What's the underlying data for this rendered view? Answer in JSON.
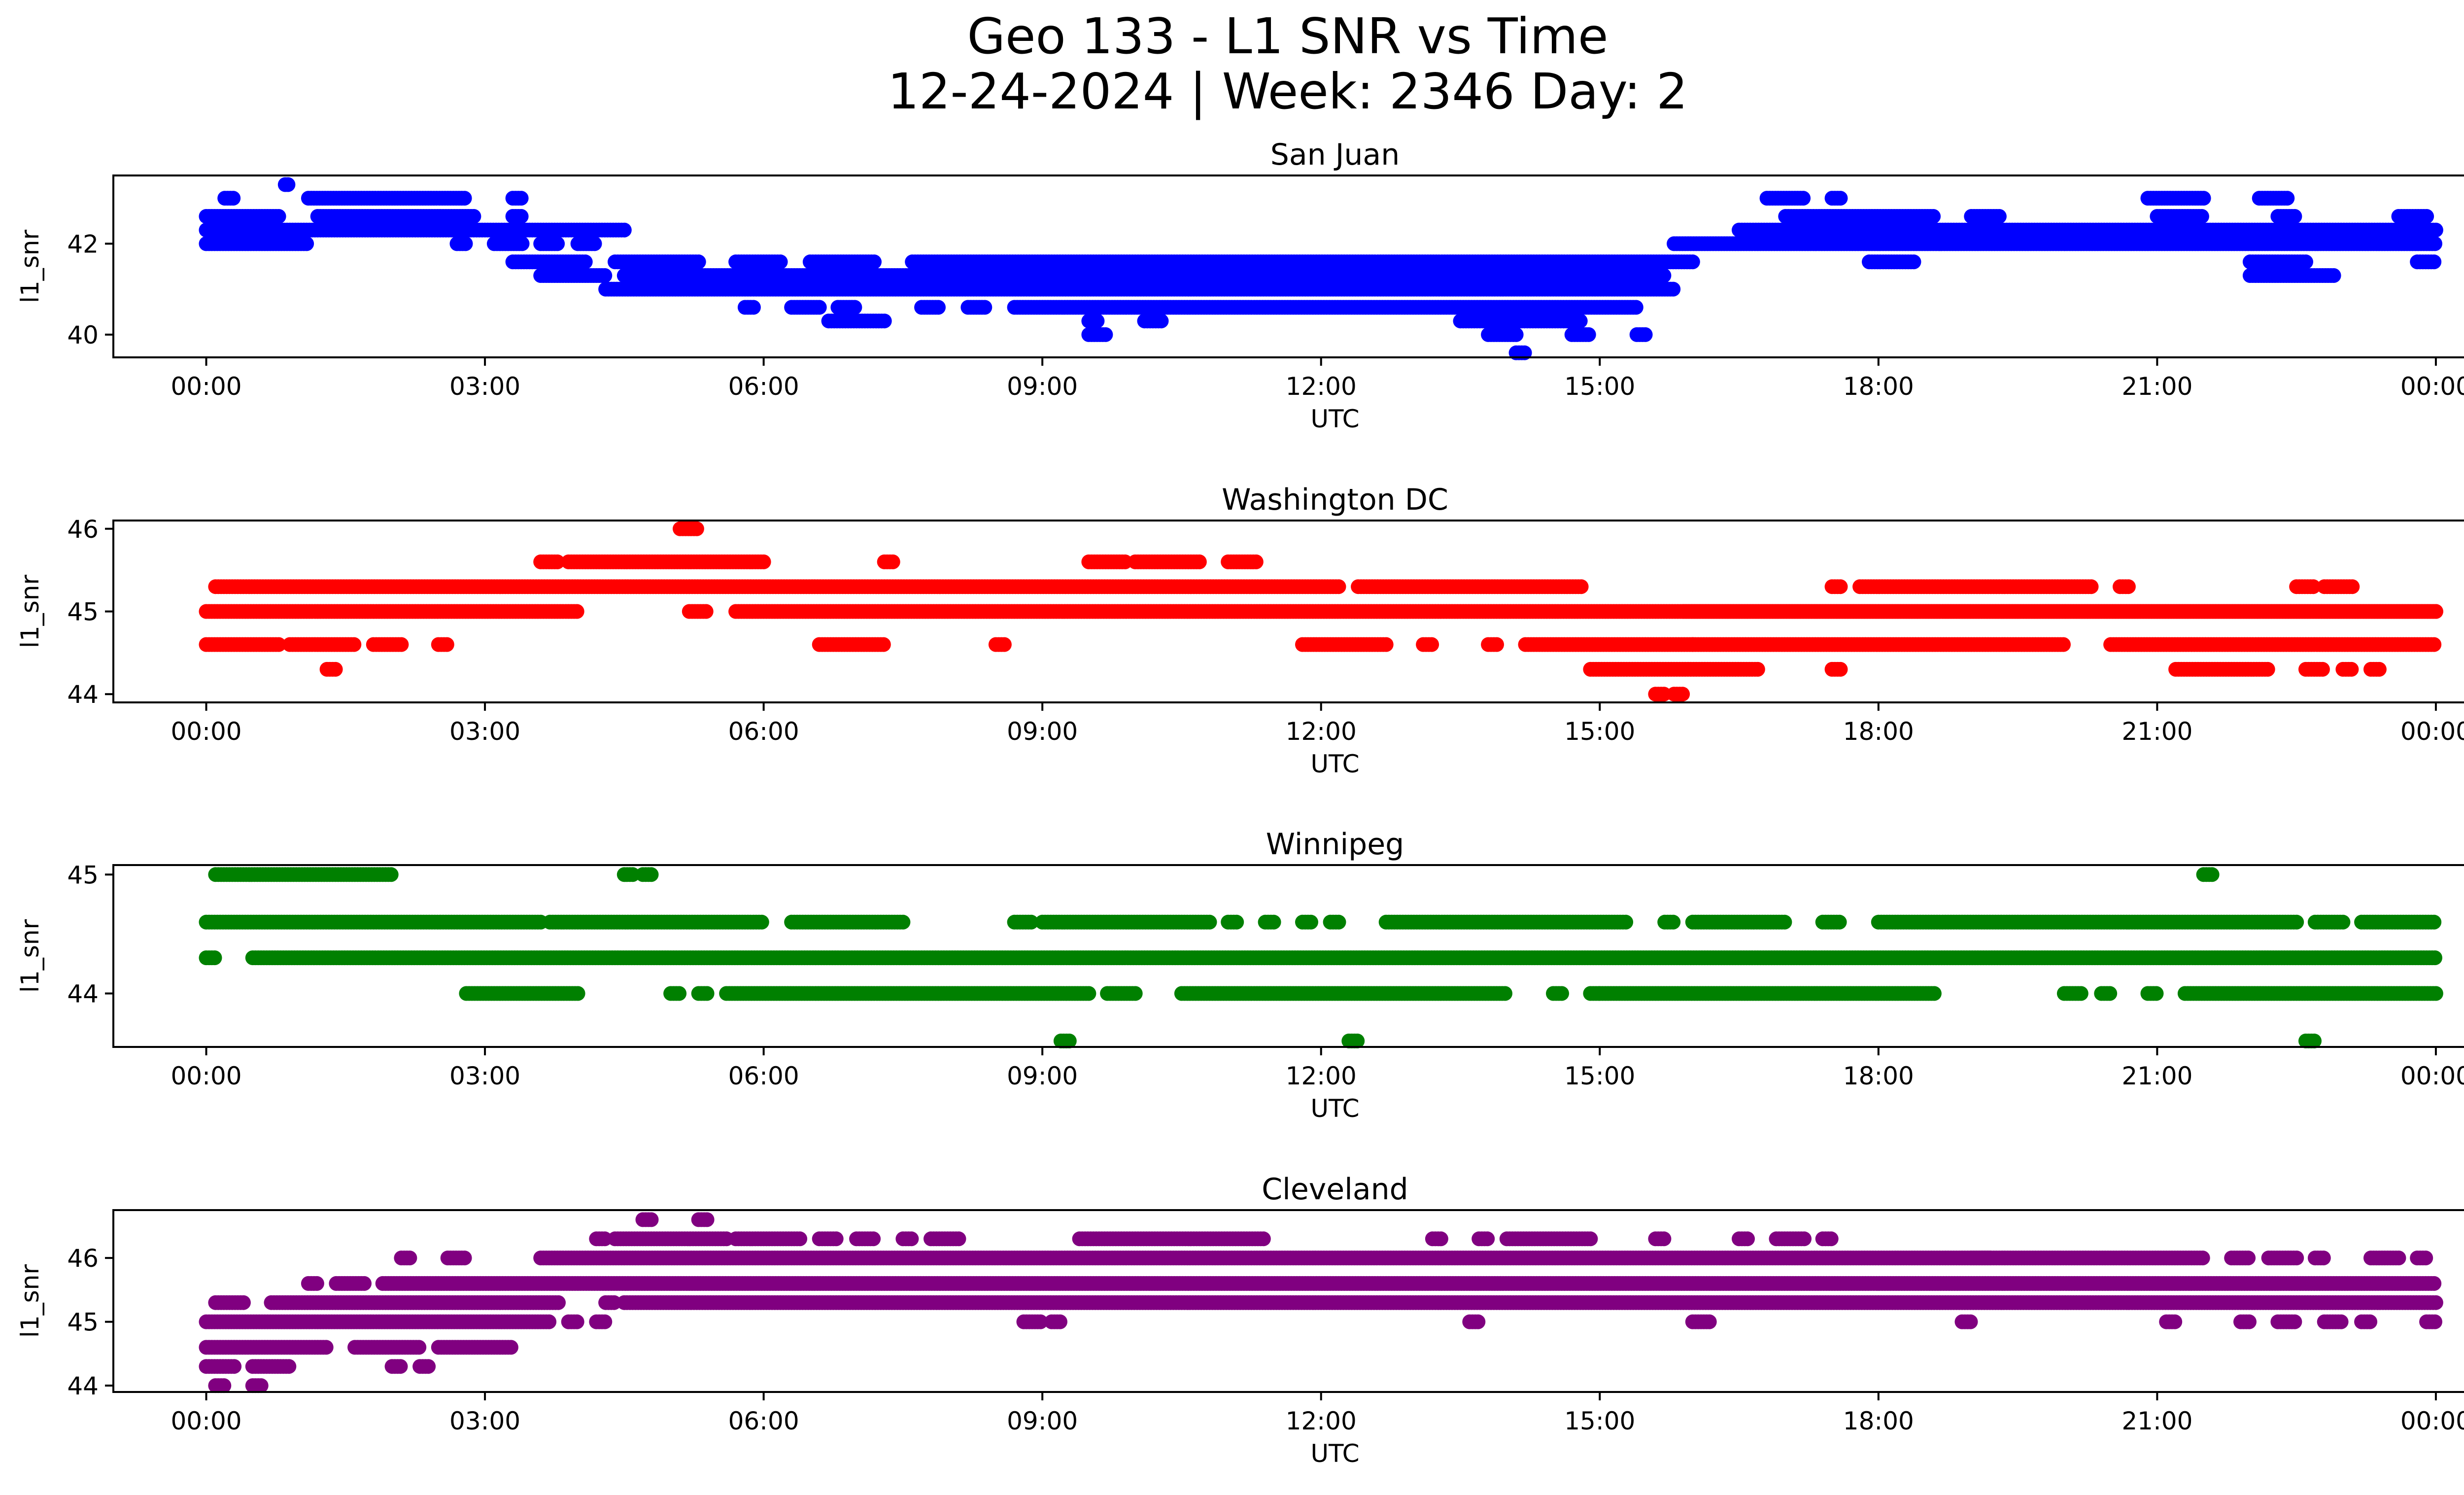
{
  "title_line1": "Geo 133 - L1 SNR vs Time",
  "title_line2": "12-24-2024 | Week: 2346 Day: 2",
  "chart_data": [
    {
      "type": "scatter",
      "title": "San Juan",
      "xlabel": "UTC",
      "ylabel": "l1_snr",
      "color": "#0000ff",
      "xlim_hours": [
        -1,
        25.3
      ],
      "ylim": [
        39.5,
        43.5
      ],
      "yticks": [
        40,
        42
      ],
      "xtick_labels": [
        "00:00",
        "03:00",
        "06:00",
        "09:00",
        "12:00",
        "15:00",
        "18:00",
        "21:00",
        "00:00"
      ],
      "series": [
        {
          "name": "42.6",
          "y": 42.6,
          "ranges": [
            [
              0,
              0.8
            ],
            [
              1.2,
              2.9
            ],
            [
              3.3,
              3.4
            ],
            [
              17.0,
              18.6
            ],
            [
              19.0,
              19.3
            ],
            [
              21.0,
              21.5
            ],
            [
              22.3,
              22.5
            ],
            [
              23.6,
              23.9
            ]
          ]
        },
        {
          "name": "42.3",
          "y": 42.3,
          "ranges": [
            [
              0,
              4.5
            ],
            [
              16.5,
              24.0
            ]
          ]
        },
        {
          "name": "42.0",
          "y": 42.0,
          "ranges": [
            [
              0,
              1.1
            ],
            [
              2.7,
              2.8
            ],
            [
              3.1,
              3.4
            ],
            [
              3.6,
              3.8
            ],
            [
              4.0,
              4.2
            ],
            [
              15.8,
              24.0
            ]
          ]
        },
        {
          "name": "41.6",
          "y": 41.6,
          "ranges": [
            [
              3.3,
              4.1
            ],
            [
              4.4,
              5.3
            ],
            [
              5.7,
              6.2
            ],
            [
              6.5,
              7.2
            ],
            [
              7.6,
              16.0
            ],
            [
              17.9,
              18.4
            ],
            [
              22.0,
              22.6
            ],
            [
              23.8,
              24.0
            ]
          ]
        },
        {
          "name": "41.3",
          "y": 41.3,
          "ranges": [
            [
              3.6,
              4.3
            ],
            [
              4.5,
              15.7
            ],
            [
              22.0,
              22.9
            ]
          ]
        },
        {
          "name": "41.0",
          "y": 41.0,
          "ranges": [
            [
              4.3,
              15.8
            ]
          ]
        },
        {
          "name": "40.6",
          "y": 40.6,
          "ranges": [
            [
              5.8,
              5.9
            ],
            [
              6.3,
              6.6
            ],
            [
              6.8,
              7.0
            ],
            [
              7.7,
              7.9
            ],
            [
              8.2,
              8.4
            ],
            [
              8.7,
              15.4
            ]
          ]
        },
        {
          "name": "40.3",
          "y": 40.3,
          "ranges": [
            [
              6.7,
              7.3
            ],
            [
              9.5,
              9.6
            ],
            [
              10.1,
              10.3
            ],
            [
              13.5,
              14.8
            ]
          ]
        },
        {
          "name": "40.0",
          "y": 40.0,
          "ranges": [
            [
              9.5,
              9.7
            ],
            [
              13.8,
              14.1
            ],
            [
              14.7,
              14.9
            ],
            [
              15.4,
              15.5
            ]
          ]
        },
        {
          "name": "39.6",
          "y": 39.6,
          "ranges": [
            [
              14.1,
              14.2
            ]
          ]
        },
        {
          "name": "43.0",
          "y": 43.0,
          "ranges": [
            [
              0.2,
              0.3
            ],
            [
              1.1,
              2.8
            ],
            [
              3.3,
              3.4
            ],
            [
              16.8,
              17.2
            ],
            [
              17.5,
              17.6
            ],
            [
              20.9,
              21.5
            ],
            [
              22.1,
              22.4
            ]
          ]
        },
        {
          "name": "43.3",
          "y": 43.3,
          "ranges": [
            [
              0.85,
              0.9
            ]
          ]
        }
      ]
    },
    {
      "type": "scatter",
      "title": "Washington DC",
      "xlabel": "UTC",
      "ylabel": "l1_snr",
      "color": "#ff0000",
      "xlim_hours": [
        -1,
        25.3
      ],
      "ylim": [
        43.9,
        46.1
      ],
      "yticks": [
        44,
        45,
        46
      ],
      "xtick_labels": [
        "00:00",
        "03:00",
        "06:00",
        "09:00",
        "12:00",
        "15:00",
        "18:00",
        "21:00",
        "00:00"
      ],
      "series": [
        {
          "name": "45.3",
          "y": 45.3,
          "ranges": [
            [
              0.1,
              12.2
            ],
            [
              12.4,
              14.8
            ],
            [
              17.5,
              17.6
            ],
            [
              17.8,
              20.3
            ],
            [
              20.6,
              20.7
            ],
            [
              22.5,
              22.7
            ],
            [
              22.8,
              23.1
            ]
          ]
        },
        {
          "name": "45.0",
          "y": 45.0,
          "ranges": [
            [
              0,
              4.0
            ],
            [
              5.2,
              5.4
            ],
            [
              5.7,
              24.0
            ],
            [
              15.9,
              24.0
            ]
          ]
        },
        {
          "name": "44.6",
          "y": 44.6,
          "ranges": [
            [
              0,
              0.8
            ],
            [
              0.9,
              1.6
            ],
            [
              1.8,
              2.1
            ],
            [
              2.5,
              2.6
            ],
            [
              6.6,
              7.3
            ],
            [
              8.5,
              8.6
            ],
            [
              11.8,
              12.7
            ],
            [
              13.1,
              13.2
            ],
            [
              13.8,
              13.9
            ],
            [
              14.2,
              16.0
            ],
            [
              16.0,
              20.0
            ],
            [
              20.5,
              24.0
            ]
          ]
        },
        {
          "name": "44.3",
          "y": 44.3,
          "ranges": [
            [
              1.3,
              1.4
            ],
            [
              14.9,
              16.7
            ],
            [
              17.5,
              17.6
            ],
            [
              21.2,
              22.2
            ],
            [
              22.6,
              22.8
            ],
            [
              23.0,
              23.1
            ],
            [
              23.3,
              23.4
            ]
          ]
        },
        {
          "name": "44.0",
          "y": 44.0,
          "ranges": [
            [
              15.6,
              15.7
            ],
            [
              15.8,
              15.9
            ]
          ]
        },
        {
          "name": "45.6",
          "y": 45.6,
          "ranges": [
            [
              3.6,
              3.8
            ],
            [
              3.9,
              6.0
            ],
            [
              7.3,
              7.4
            ],
            [
              9.5,
              9.9
            ],
            [
              10.0,
              10.7
            ],
            [
              11.0,
              11.3
            ]
          ]
        },
        {
          "name": "46.0",
          "y": 46.0,
          "ranges": [
            [
              5.1,
              5.3
            ]
          ]
        }
      ]
    },
    {
      "type": "scatter",
      "title": "Winnipeg",
      "xlabel": "UTC",
      "ylabel": "l1_snr",
      "color": "#008000",
      "xlim_hours": [
        -1,
        25.3
      ],
      "ylim": [
        43.55,
        45.08
      ],
      "yticks": [
        44,
        45
      ],
      "xtick_labels": [
        "00:00",
        "03:00",
        "06:00",
        "09:00",
        "12:00",
        "15:00",
        "18:00",
        "21:00",
        "00:00"
      ],
      "series": [
        {
          "name": "45.0",
          "y": 45.0,
          "ranges": [
            [
              0.1,
              2.0
            ],
            [
              4.5,
              4.6
            ],
            [
              4.7,
              4.8
            ],
            [
              21.5,
              21.6
            ]
          ]
        },
        {
          "name": "44.6",
          "y": 44.6,
          "ranges": [
            [
              0,
              3.6
            ],
            [
              3.7,
              6.0
            ],
            [
              6.3,
              7.5
            ],
            [
              8.7,
              8.9
            ],
            [
              9.0,
              10.8
            ],
            [
              11.0,
              11.1
            ],
            [
              11.4,
              11.5
            ],
            [
              11.8,
              11.9
            ],
            [
              12.1,
              12.2
            ],
            [
              12.7,
              15.3
            ],
            [
              15.7,
              15.8
            ],
            [
              16.0,
              17.0
            ],
            [
              17.4,
              17.6
            ],
            [
              18.0,
              22.5
            ],
            [
              22.7,
              23.0
            ],
            [
              23.2,
              24.0
            ]
          ]
        },
        {
          "name": "44.3",
          "y": 44.3,
          "ranges": [
            [
              0,
              0.1
            ],
            [
              0.5,
              24.0
            ]
          ]
        },
        {
          "name": "44.0",
          "y": 44.0,
          "ranges": [
            [
              2.8,
              4.0
            ],
            [
              5.0,
              5.1
            ],
            [
              5.3,
              5.4
            ],
            [
              5.6,
              9.5
            ],
            [
              9.7,
              10.0
            ],
            [
              10.5,
              14.0
            ],
            [
              14.5,
              14.6
            ],
            [
              14.9,
              15.0
            ],
            [
              15.0,
              18.6
            ],
            [
              20.0,
              20.2
            ],
            [
              20.4,
              20.5
            ],
            [
              20.9,
              21.0
            ],
            [
              21.3,
              24.0
            ]
          ]
        },
        {
          "name": "43.6",
          "y": 43.6,
          "ranges": [
            [
              9.2,
              9.3
            ],
            [
              12.3,
              12.4
            ],
            [
              22.6,
              22.7
            ]
          ]
        }
      ]
    },
    {
      "type": "scatter",
      "title": "Cleveland",
      "xlabel": "UTC",
      "ylabel": "l1_snr",
      "color": "#800080",
      "xlim_hours": [
        -1,
        25.3
      ],
      "ylim": [
        43.9,
        46.75
      ],
      "yticks": [
        44,
        45,
        46
      ],
      "xtick_labels": [
        "00:00",
        "03:00",
        "06:00",
        "09:00",
        "12:00",
        "15:00",
        "18:00",
        "21:00",
        "00:00"
      ],
      "series": [
        {
          "name": "46.6",
          "y": 46.6,
          "ranges": [
            [
              4.7,
              4.8
            ],
            [
              5.3,
              5.4
            ]
          ]
        },
        {
          "name": "46.3",
          "y": 46.3,
          "ranges": [
            [
              4.2,
              4.3
            ],
            [
              4.4,
              5.6
            ],
            [
              5.7,
              6.4
            ],
            [
              6.6,
              6.8
            ],
            [
              7.0,
              7.2
            ],
            [
              7.5,
              7.6
            ],
            [
              7.8,
              8.1
            ],
            [
              9.4,
              11.4
            ],
            [
              13.2,
              13.3
            ],
            [
              13.7,
              13.8
            ],
            [
              14.0,
              14.9
            ],
            [
              15.6,
              15.7
            ],
            [
              16.5,
              16.6
            ],
            [
              16.9,
              17.2
            ],
            [
              17.4,
              17.5
            ]
          ]
        },
        {
          "name": "46.0",
          "y": 46.0,
          "ranges": [
            [
              2.1,
              2.2
            ],
            [
              2.6,
              2.8
            ],
            [
              3.6,
              19.2
            ],
            [
              19.0,
              21.5
            ],
            [
              21.8,
              22.0
            ],
            [
              22.2,
              22.5
            ],
            [
              22.7,
              22.8
            ],
            [
              23.3,
              23.6
            ],
            [
              23.8,
              23.9
            ]
          ]
        },
        {
          "name": "45.6",
          "y": 45.6,
          "ranges": [
            [
              1.1,
              1.2
            ],
            [
              1.4,
              1.7
            ],
            [
              1.9,
              24.0
            ]
          ]
        },
        {
          "name": "45.3",
          "y": 45.3,
          "ranges": [
            [
              0.1,
              0.4
            ],
            [
              0.7,
              3.8
            ],
            [
              4.3,
              4.4
            ],
            [
              4.5,
              24.0
            ]
          ]
        },
        {
          "name": "45.0",
          "y": 45.0,
          "ranges": [
            [
              0,
              3.7
            ],
            [
              3.9,
              4.0
            ],
            [
              4.2,
              4.3
            ],
            [
              8.8,
              9.0
            ],
            [
              9.1,
              9.2
            ],
            [
              13.6,
              13.7
            ],
            [
              16.0,
              16.2
            ],
            [
              18.9,
              19.0
            ],
            [
              21.1,
              21.2
            ],
            [
              21.9,
              22.0
            ],
            [
              22.3,
              22.5
            ],
            [
              22.8,
              23.0
            ],
            [
              23.2,
              23.3
            ],
            [
              23.9,
              24.0
            ]
          ]
        },
        {
          "name": "44.6",
          "y": 44.6,
          "ranges": [
            [
              0,
              1.3
            ],
            [
              1.6,
              2.3
            ],
            [
              2.5,
              3.3
            ]
          ]
        },
        {
          "name": "44.3",
          "y": 44.3,
          "ranges": [
            [
              0,
              0.3
            ],
            [
              0.5,
              0.9
            ],
            [
              2.0,
              2.1
            ],
            [
              2.3,
              2.4
            ]
          ]
        },
        {
          "name": "44.0",
          "y": 44.0,
          "ranges": [
            [
              0.1,
              0.2
            ],
            [
              0.5,
              0.6
            ]
          ]
        }
      ]
    }
  ]
}
